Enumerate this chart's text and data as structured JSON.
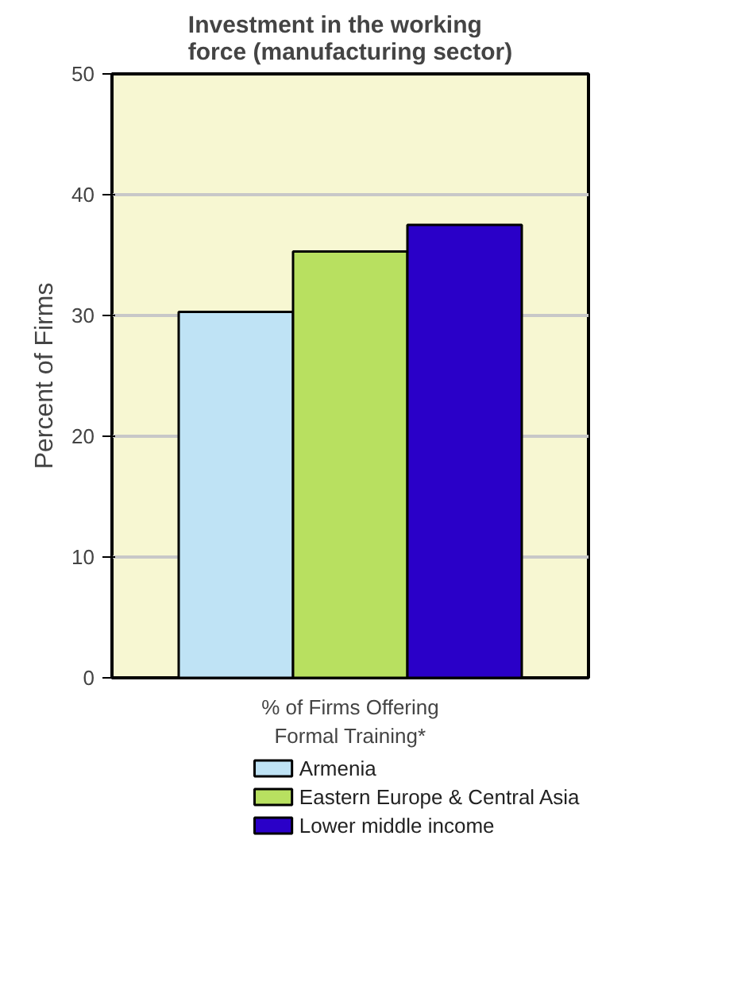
{
  "chart_data": {
    "type": "bar",
    "title": "Investment in the working force (manufacturing sector)",
    "ylabel": "Percent of Firms",
    "categories": [
      "% of Firms Offering Formal Training*"
    ],
    "series": [
      {
        "name": "Armenia",
        "color": "#bfe3f5",
        "values": [
          30.3
        ]
      },
      {
        "name": "Eastern Europe & Central Asia",
        "color": "#b8e060",
        "values": [
          35.3
        ]
      },
      {
        "name": "Lower middle income",
        "color": "#2a00c8",
        "values": [
          37.5
        ]
      }
    ],
    "ylim": [
      0,
      50
    ],
    "yticks": [
      0,
      10,
      20,
      30,
      40,
      50
    ],
    "grid": "y",
    "legend": "bottom"
  }
}
